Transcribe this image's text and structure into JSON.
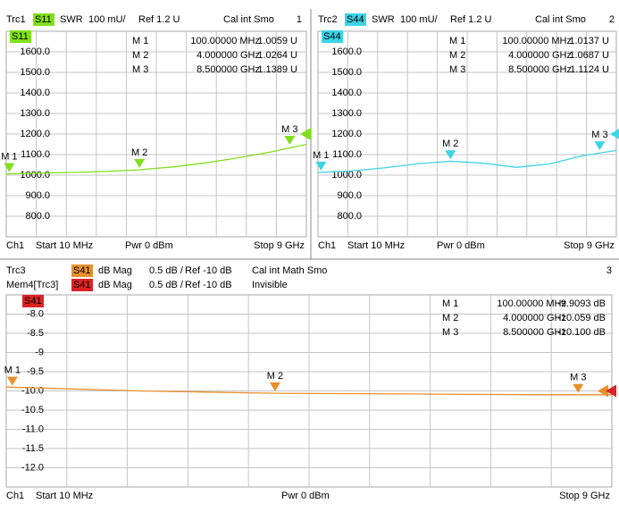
{
  "chart_data": [
    {
      "type": "line",
      "window": "1",
      "headers": [
        {
          "trace": "Trc1",
          "parameter": "S11",
          "color": "#7fe01a",
          "format": "SWR",
          "scale": "100 mU/",
          "ref_label": "Ref 1.2 U",
          "ref": 1200,
          "status": "Cal int Smo"
        }
      ],
      "channel": "Ch1",
      "start_label": "Start 10 MHz",
      "power_label": "Pwr 0 dBm",
      "stop_label": "Stop 9 GHz",
      "xlim": [
        0.01,
        9
      ],
      "ylim": [
        700,
        1700
      ],
      "yticks": [
        {
          "value": 800,
          "label": "800.0"
        },
        {
          "value": 900,
          "label": "900.0"
        },
        {
          "value": 1000,
          "label": "1000.0"
        },
        {
          "value": 1100,
          "label": "1100.0"
        },
        {
          "value": 1200,
          "label": "1200.0"
        },
        {
          "value": 1300,
          "label": "1300.0"
        },
        {
          "value": 1400,
          "label": "1400.0"
        },
        {
          "value": 1500,
          "label": "1500.0"
        },
        {
          "value": 1600,
          "label": "1600.0"
        }
      ],
      "series": [
        {
          "color": "#7fe01a",
          "x": [
            0.01,
            1,
            2,
            3,
            4,
            5,
            6,
            7,
            8,
            9
          ],
          "values": [
            1006,
            1010,
            1013,
            1018,
            1026,
            1040,
            1060,
            1085,
            1115,
            1150
          ]
        }
      ],
      "markers": [
        {
          "name": "M 1",
          "x": 0.1,
          "value": 1005.9,
          "x_label": "100.00000 MHz",
          "value_label": "1.0059 U"
        },
        {
          "name": "M 2",
          "x": 4,
          "value": 1026.4,
          "x_label": "4.000000 GHz",
          "value_label": "1.0264 U"
        },
        {
          "name": "M 3",
          "x": 8.5,
          "value": 1138.9,
          "x_label": "8.500000 GHz",
          "value_label": "1.1389 U"
        }
      ]
    },
    {
      "type": "line",
      "window": "2",
      "headers": [
        {
          "trace": "Trc2",
          "parameter": "S44",
          "color": "#3cd4e6",
          "format": "SWR",
          "scale": "100 mU/",
          "ref_label": "Ref 1.2 U",
          "ref": 1200,
          "status": "Cal int Smo"
        }
      ],
      "channel": "Ch1",
      "start_label": "Start 10 MHz",
      "power_label": "Pwr 0 dBm",
      "stop_label": "Stop 9 GHz",
      "xlim": [
        0.01,
        9
      ],
      "ylim": [
        700,
        1700
      ],
      "yticks": [
        {
          "value": 800,
          "label": "800.0"
        },
        {
          "value": 900,
          "label": "900.0"
        },
        {
          "value": 1000,
          "label": "1000.0"
        },
        {
          "value": 1100,
          "label": "1100.0"
        },
        {
          "value": 1200,
          "label": "1200.0"
        },
        {
          "value": 1300,
          "label": "1300.0"
        },
        {
          "value": 1400,
          "label": "1400.0"
        },
        {
          "value": 1500,
          "label": "1500.0"
        },
        {
          "value": 1600,
          "label": "1600.0"
        }
      ],
      "series": [
        {
          "color": "#3cd4e6",
          "x": [
            0.01,
            1,
            2,
            3,
            4,
            5,
            6,
            7,
            8,
            9
          ],
          "values": [
            1013,
            1020,
            1035,
            1055,
            1068,
            1058,
            1038,
            1055,
            1095,
            1120
          ]
        }
      ],
      "markers": [
        {
          "name": "M 1",
          "x": 0.1,
          "value": 1013.7,
          "x_label": "100.00000 MHz",
          "value_label": "1.0137 U"
        },
        {
          "name": "M 2",
          "x": 4,
          "value": 1068.7,
          "x_label": "4.000000 GHz",
          "value_label": "1.0687 U"
        },
        {
          "name": "M 3",
          "x": 8.5,
          "value": 1112.4,
          "x_label": "8.500000 GHz",
          "value_label": "1.1124 U"
        }
      ]
    },
    {
      "type": "line",
      "window": "3",
      "headers": [
        {
          "trace": "Trc3",
          "parameter": "S41",
          "color": "#e8902a",
          "format": "dB Mag",
          "scale": "0.5 dB /",
          "ref_label": "Ref -10 dB",
          "ref": -10,
          "status": "Cal int Math Smo"
        },
        {
          "trace": "Mem4[Trc3]",
          "parameter": "S41",
          "color": "#dd2222",
          "format": "dB Mag",
          "scale": "0.5 dB /",
          "ref_label": "Ref -10 dB",
          "ref": -10,
          "status": "Invisible"
        }
      ],
      "channel": "Ch1",
      "start_label": "Start 10 MHz",
      "power_label": "Pwr 0 dBm",
      "stop_label": "Stop 9 GHz",
      "xlim": [
        0.01,
        9
      ],
      "ylim": [
        -12.5,
        -7.5
      ],
      "yticks": [
        {
          "value": -8,
          "label": "-8.0"
        },
        -8.5,
        -9,
        -9.5,
        {
          "value": -10,
          "label": "-10.0"
        },
        -10.5,
        {
          "value": -11,
          "label": "-11.0"
        },
        -11.5,
        {
          "value": -12,
          "label": "-12.0"
        }
      ],
      "series": [
        {
          "color": "#e8902a",
          "x": [
            0.01,
            1,
            2,
            3,
            4,
            5,
            6,
            7,
            8,
            9
          ],
          "values": [
            -9.9,
            -9.95,
            -10,
            -10.03,
            -10.06,
            -10.07,
            -10.08,
            -10.09,
            -10.1,
            -10.1
          ]
        }
      ],
      "markers": [
        {
          "name": "M 1",
          "x": 0.1,
          "value": -9.9093,
          "x_label": "100.00000 MHz",
          "value_label": "-9.9093 dB"
        },
        {
          "name": "M 2",
          "x": 4,
          "value": -10.059,
          "x_label": "4.000000 GHz",
          "value_label": "-10.059 dB"
        },
        {
          "name": "M 3",
          "x": 8.5,
          "value": -10.1,
          "x_label": "8.500000 GHz",
          "value_label": "-10.100 dB"
        }
      ]
    }
  ]
}
